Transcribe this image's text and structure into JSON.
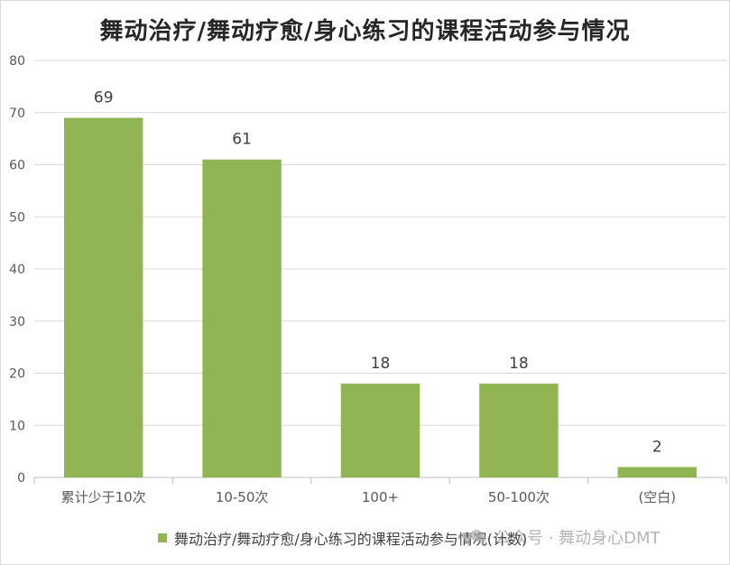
{
  "chart_data": {
    "type": "bar",
    "title": "舞动治疗/舞动疗愈/身心练习的课程活动参与情况",
    "categories": [
      "累计少于10次",
      "10-50次",
      "100+",
      "50-100次",
      "(空白)"
    ],
    "series": [
      {
        "name": "舞动治疗/舞动疗愈/身心练习的课程活动参与情况(计数)",
        "values": [
          69,
          61,
          18,
          18,
          2
        ]
      }
    ],
    "ylim": [
      0,
      80
    ],
    "yticks": [
      0,
      10,
      20,
      30,
      40,
      50,
      60,
      70,
      80
    ],
    "grid": true,
    "legend_position": "bottom",
    "bar_color": "#92b554",
    "xlabel": "",
    "ylabel": ""
  },
  "watermark": {
    "text": "公众号 · 舞动身心DMT"
  }
}
